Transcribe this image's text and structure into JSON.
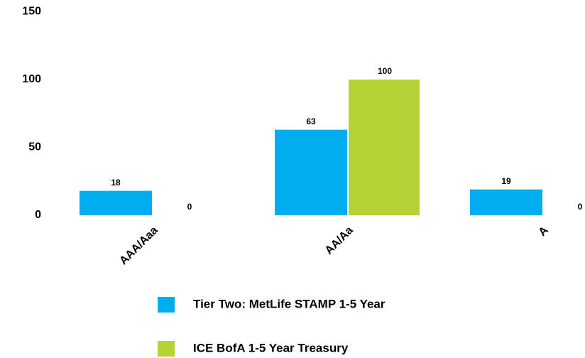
{
  "chart_data": {
    "type": "bar",
    "categories": [
      "AAA/Aaa",
      "AA/Aa",
      "A"
    ],
    "series": [
      {
        "name": "Tier Two: MetLife STAMP 1-5 Year",
        "color": "#00aeef",
        "values": [
          18,
          63,
          19
        ]
      },
      {
        "name": "ICE BofA 1-5 Year Treasury",
        "color": "#b5d334",
        "values": [
          0,
          100,
          0
        ]
      }
    ],
    "ylim": [
      0,
      150
    ],
    "yticks": [
      0,
      50,
      100,
      150
    ],
    "grid": false,
    "legend": "bottom"
  }
}
